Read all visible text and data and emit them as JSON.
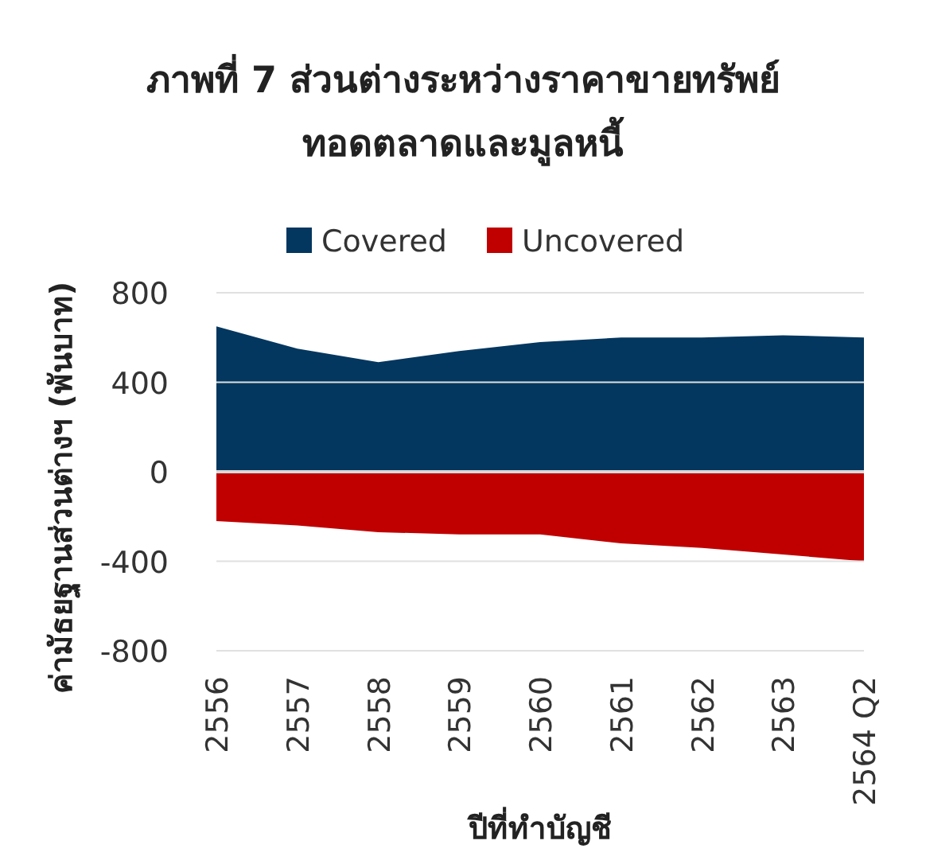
{
  "chart_data": {
    "type": "area",
    "title": "ภาพที่ 7 ส่วนต่างระหว่างราคาขายทรัพย์ทอดตลาดและมูลหนี้",
    "xlabel": "ปีที่ทำบัญชี",
    "ylabel": "ค่ามัธยฐานส่วนต่างฯ (พันบาท)",
    "categories": [
      "2556",
      "2557",
      "2558",
      "2559",
      "2560",
      "2561",
      "2562",
      "2563",
      "2564 Q2"
    ],
    "series": [
      {
        "name": "Covered",
        "color": "#03375f",
        "values": [
          650,
          550,
          490,
          540,
          580,
          600,
          600,
          610,
          600
        ]
      },
      {
        "name": "Uncovered",
        "color": "#c00000",
        "values": [
          -220,
          -240,
          -270,
          -280,
          -280,
          -320,
          -340,
          -370,
          -400
        ]
      }
    ],
    "ylim": [
      -800,
      800
    ],
    "yticks": [
      -800,
      -400,
      0,
      400,
      800
    ],
    "grid": "y",
    "legend": "top"
  }
}
